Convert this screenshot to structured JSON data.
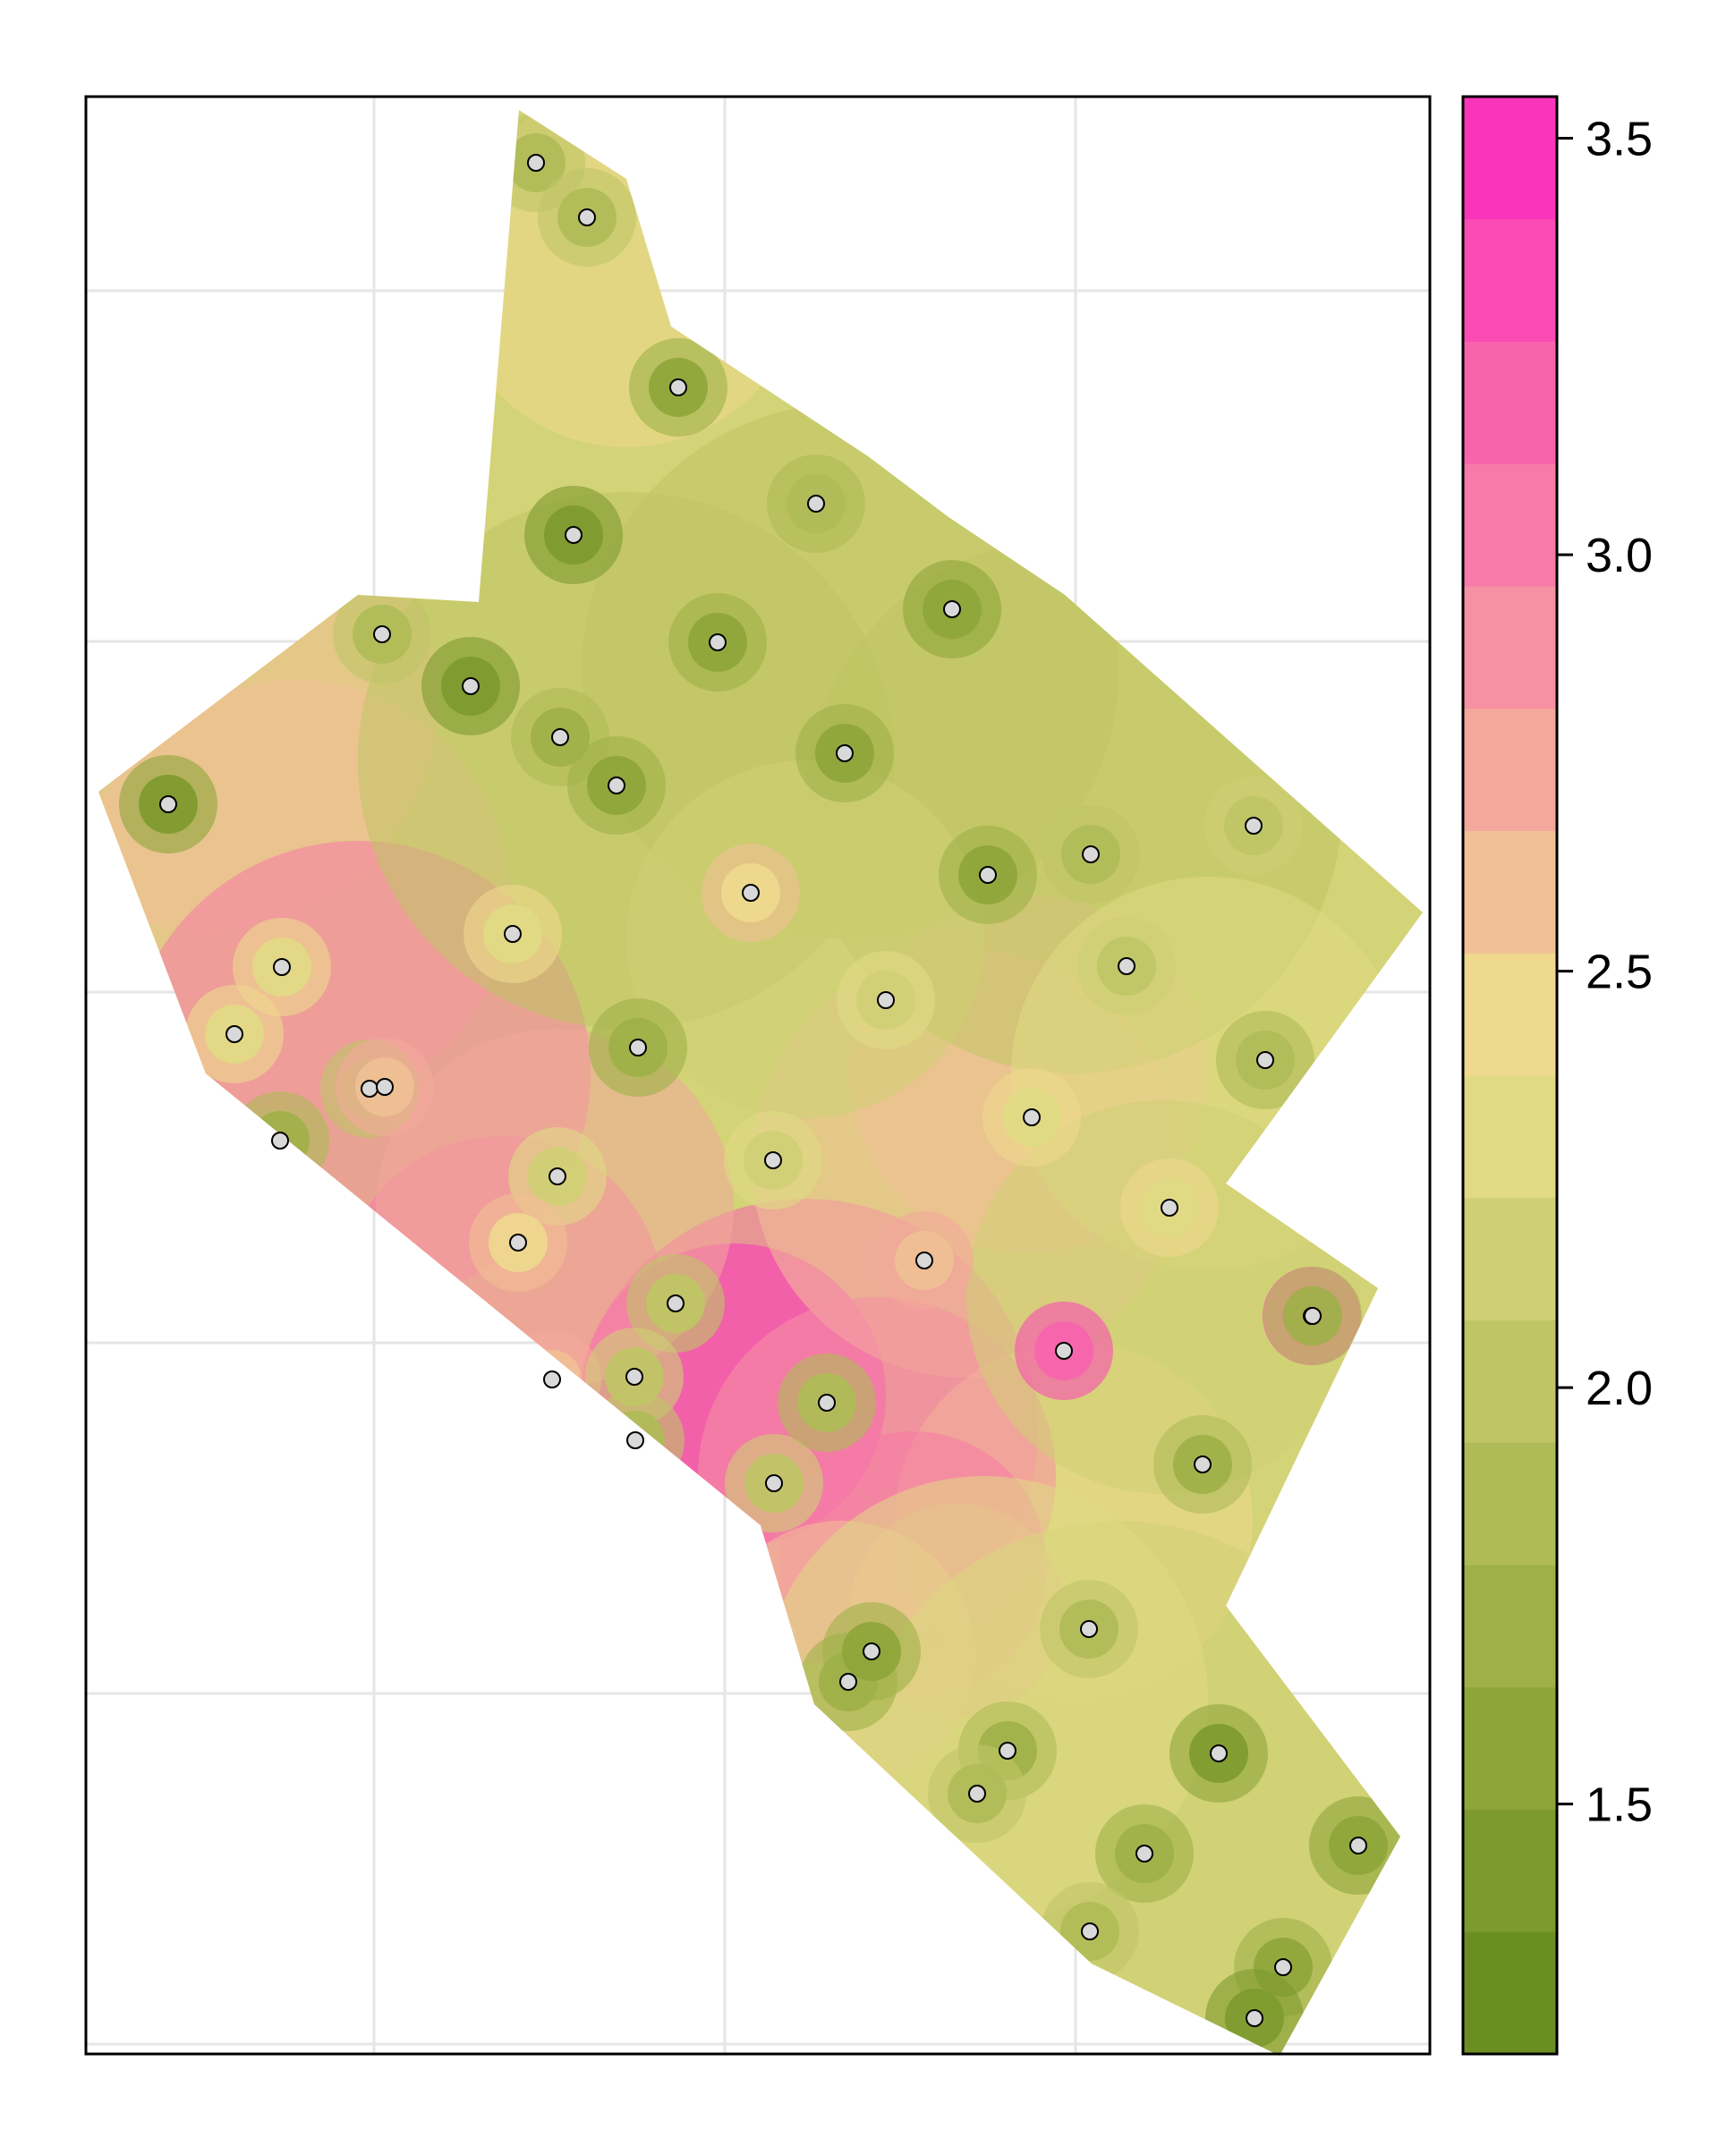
{
  "chart_data": {
    "type": "heatmap",
    "description_kind": "interpolated surface over sample points",
    "colorbar": {
      "ticks": [
        1.5,
        2.0,
        2.5,
        3.0,
        3.5
      ],
      "tick_labels": [
        "1.5",
        "2.0",
        "2.5",
        "3.0",
        "3.5"
      ],
      "range": [
        1.2,
        3.55
      ],
      "colors": [
        "#6b8e23",
        "#7d9a2e",
        "#8ea53a",
        "#9fb048",
        "#afbb56",
        "#bfc565",
        "#cfcf74",
        "#e0da84",
        "#eed98e",
        "#f0c095",
        "#f3a89b",
        "#f591a2",
        "#f77aa8",
        "#f863ae",
        "#fa4cb4",
        "#fb35bb"
      ]
    },
    "points": [
      [
        1.95,
        3.37
      ],
      [
        1.88,
        3.36
      ],
      [
        1.6,
        3.1
      ],
      [
        1.4,
        3.0
      ],
      [
        1.85,
        2.93
      ],
      [
        1.65,
        2.85
      ],
      [
        1.55,
        2.78
      ],
      [
        1.92,
        2.73
      ],
      [
        1.4,
        2.71
      ],
      [
        1.75,
        2.7
      ],
      [
        1.6,
        2.63
      ],
      [
        1.65,
        2.56
      ],
      [
        1.9,
        2.56
      ],
      [
        1.5,
        2.5
      ],
      [
        2.4,
        2.45
      ],
      [
        2.3,
        2.4
      ],
      [
        1.8,
        2.37
      ],
      [
        2.0,
        2.35
      ],
      [
        2.1,
        2.3
      ],
      [
        1.6,
        2.28
      ],
      [
        2.05,
        2.25
      ],
      [
        2.6,
        2.2
      ],
      [
        2.45,
        2.17
      ],
      [
        2.15,
        2.15
      ],
      [
        1.85,
        2.1
      ],
      [
        2.3,
        2.05
      ],
      [
        1.7,
        2.0
      ],
      [
        2.2,
        2.0
      ],
      [
        2.35,
        1.96
      ],
      [
        2.2,
        1.92
      ],
      [
        2.55,
        1.9
      ],
      [
        2.4,
        1.85
      ],
      [
        2.0,
        1.8
      ],
      [
        2.6,
        1.78
      ],
      [
        3.2,
        1.75
      ],
      [
        3.3,
        1.7
      ],
      [
        2.7,
        1.66
      ],
      [
        2.1,
        1.65
      ],
      [
        1.8,
        1.6
      ],
      [
        1.9,
        1.55
      ],
      [
        1.75,
        1.5
      ],
      [
        1.7,
        1.45
      ],
      [
        2.1,
        1.45
      ],
      [
        1.6,
        1.4
      ],
      [
        1.95,
        1.35
      ],
      [
        1.8,
        1.3
      ],
      [
        1.5,
        1.27
      ],
      [
        1.7,
        1.25
      ],
      [
        1.55,
        1.2
      ]
    ]
  }
}
